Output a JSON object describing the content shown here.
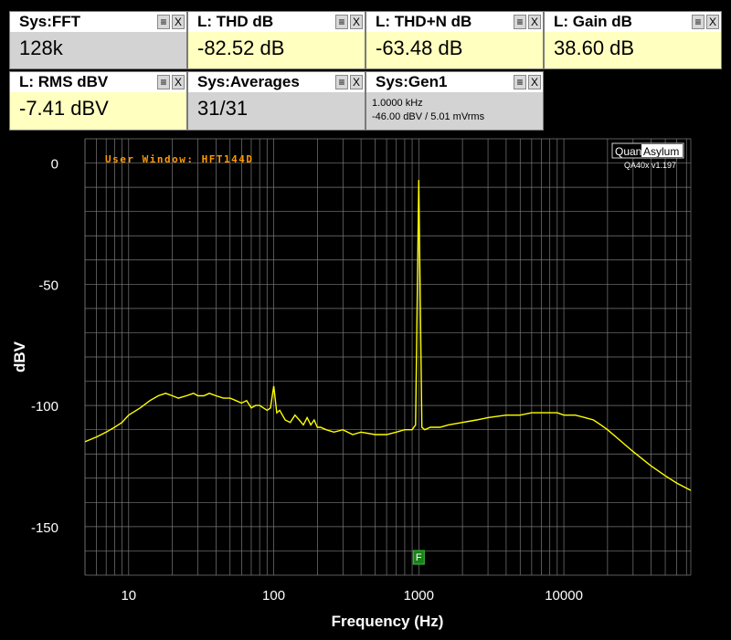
{
  "readouts": [
    {
      "title": "Sys:FFT",
      "value": "128k",
      "bg": "#d3d3d3"
    },
    {
      "title": "L: THD dB",
      "value": "-82.52 dB",
      "bg": "#ffffc0"
    },
    {
      "title": "L: THD+N dB",
      "value": "-63.48 dB",
      "bg": "#ffffc0"
    },
    {
      "title": "L: Gain dB",
      "value": "38.60 dB",
      "bg": "#ffffc0"
    },
    {
      "title": "L: RMS dBV",
      "value": "-7.41 dBV",
      "bg": "#ffffc0"
    },
    {
      "title": "Sys:Averages",
      "value": "31/31",
      "bg": "#d3d3d3"
    },
    {
      "title": "Sys:Gen1",
      "line1": "1.0000 kHz",
      "line2": "-46.00 dBV  / 5.01 mVrms",
      "bg": "#d3d3d3"
    }
  ],
  "tile_controls": {
    "menu": "≡",
    "close": "X"
  },
  "brand": {
    "quant": "Quant",
    "asylum": "Asylum",
    "version": "QA40x v1.197"
  },
  "window_label": "User Window:  HFT144D",
  "marker_label": "F",
  "colors": {
    "trace": "#ffff00",
    "grid": "#7a7a7a",
    "window_label": "#ff9900",
    "marker": "#1a7f1a",
    "axis_text": "#ffffff"
  },
  "chart_data": {
    "type": "line",
    "xscale": "log",
    "xlim": [
      5,
      75000
    ],
    "ylim": [
      -170,
      10
    ],
    "xticks": [
      10,
      100,
      1000,
      10000
    ],
    "xtick_labels": [
      "10",
      "100",
      "1000",
      "10000"
    ],
    "yticks": [
      0,
      -50,
      -100,
      -150
    ],
    "ytick_labels": [
      "0",
      "-50",
      "-100",
      "-150"
    ],
    "xlabel": "Frequency (Hz)",
    "ylabel": "dBV",
    "grid": true,
    "series": [
      {
        "color": "#ffff00",
        "x": [
          5,
          6,
          7,
          8,
          9,
          10,
          12,
          14,
          16,
          18,
          20,
          22,
          25,
          28,
          30,
          33,
          36,
          40,
          45,
          50,
          55,
          60,
          65,
          70,
          75,
          80,
          85,
          90,
          95,
          100,
          105,
          110,
          120,
          130,
          140,
          150,
          160,
          170,
          180,
          190,
          200,
          210,
          230,
          260,
          300,
          350,
          400,
          500,
          600,
          700,
          800,
          900,
          950,
          1000,
          1050,
          1100,
          1200,
          1400,
          1600,
          2000,
          2500,
          3000,
          4000,
          5000,
          6000,
          7000,
          8000,
          9000,
          10000,
          12000,
          14000,
          16000,
          18000,
          20000,
          25000,
          30000,
          40000,
          50000,
          60000,
          75000
        ],
        "y": [
          -115,
          -113,
          -111,
          -109,
          -107,
          -104,
          -101,
          -98,
          -96,
          -95,
          -96,
          -97,
          -96,
          -95,
          -96,
          -96,
          -95,
          -96,
          -97,
          -97,
          -98,
          -99,
          -98,
          -101,
          -100,
          -100,
          -101,
          -102,
          -101,
          -92,
          -103,
          -102,
          -106,
          -107,
          -104,
          -106,
          -108,
          -105,
          -108,
          -106,
          -109,
          -109,
          -110,
          -111,
          -110,
          -112,
          -111,
          -112,
          -112,
          -111,
          -110,
          -110,
          -108,
          -7,
          -109,
          -110,
          -109,
          -109,
          -108,
          -107,
          -106,
          -105,
          -104,
          -104,
          -103,
          -103,
          -103,
          -103,
          -104,
          -104,
          -105,
          -106,
          -108,
          -110,
          -115,
          -119,
          -125,
          -129,
          -132,
          -135
        ]
      }
    ]
  }
}
